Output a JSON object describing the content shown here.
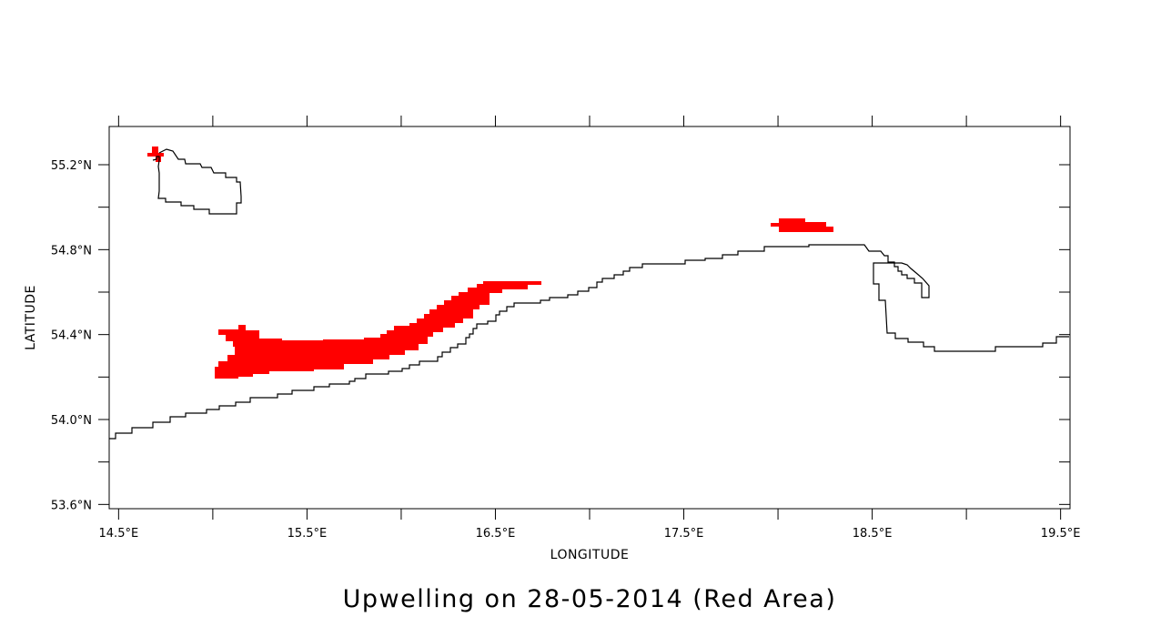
{
  "map": {
    "title": "Upwelling on 28-05-2014 (Red Area)",
    "xlabel": "LONGITUDE",
    "ylabel": "LATITUDE",
    "xlim": [
      14.45,
      19.55
    ],
    "ylim": [
      53.58,
      55.38
    ],
    "x_ticks": [
      {
        "value": 14.5,
        "label": "14.5°E"
      },
      {
        "value": 15.5,
        "label": "15.5°E"
      },
      {
        "value": 16.5,
        "label": "16.5°E"
      },
      {
        "value": 17.5,
        "label": "17.5°E"
      },
      {
        "value": 18.5,
        "label": "18.5°E"
      },
      {
        "value": 19.5,
        "label": "19.5°E"
      }
    ],
    "x_minor_ticks": [
      15.0,
      16.0,
      17.0,
      18.0,
      19.0
    ],
    "y_ticks": [
      {
        "value": 53.6,
        "label": "53.6°N"
      },
      {
        "value": 54.0,
        "label": "54.0°N"
      },
      {
        "value": 54.4,
        "label": "54.4°N"
      },
      {
        "value": 54.8,
        "label": "54.8°N"
      },
      {
        "value": 55.2,
        "label": "55.2°N"
      }
    ],
    "y_minor_ticks": [
      53.8,
      54.2,
      54.6,
      55.0
    ],
    "colors": {
      "upwelling": "#ff0000",
      "coastline": "#000000",
      "frame": "#000000"
    }
  }
}
